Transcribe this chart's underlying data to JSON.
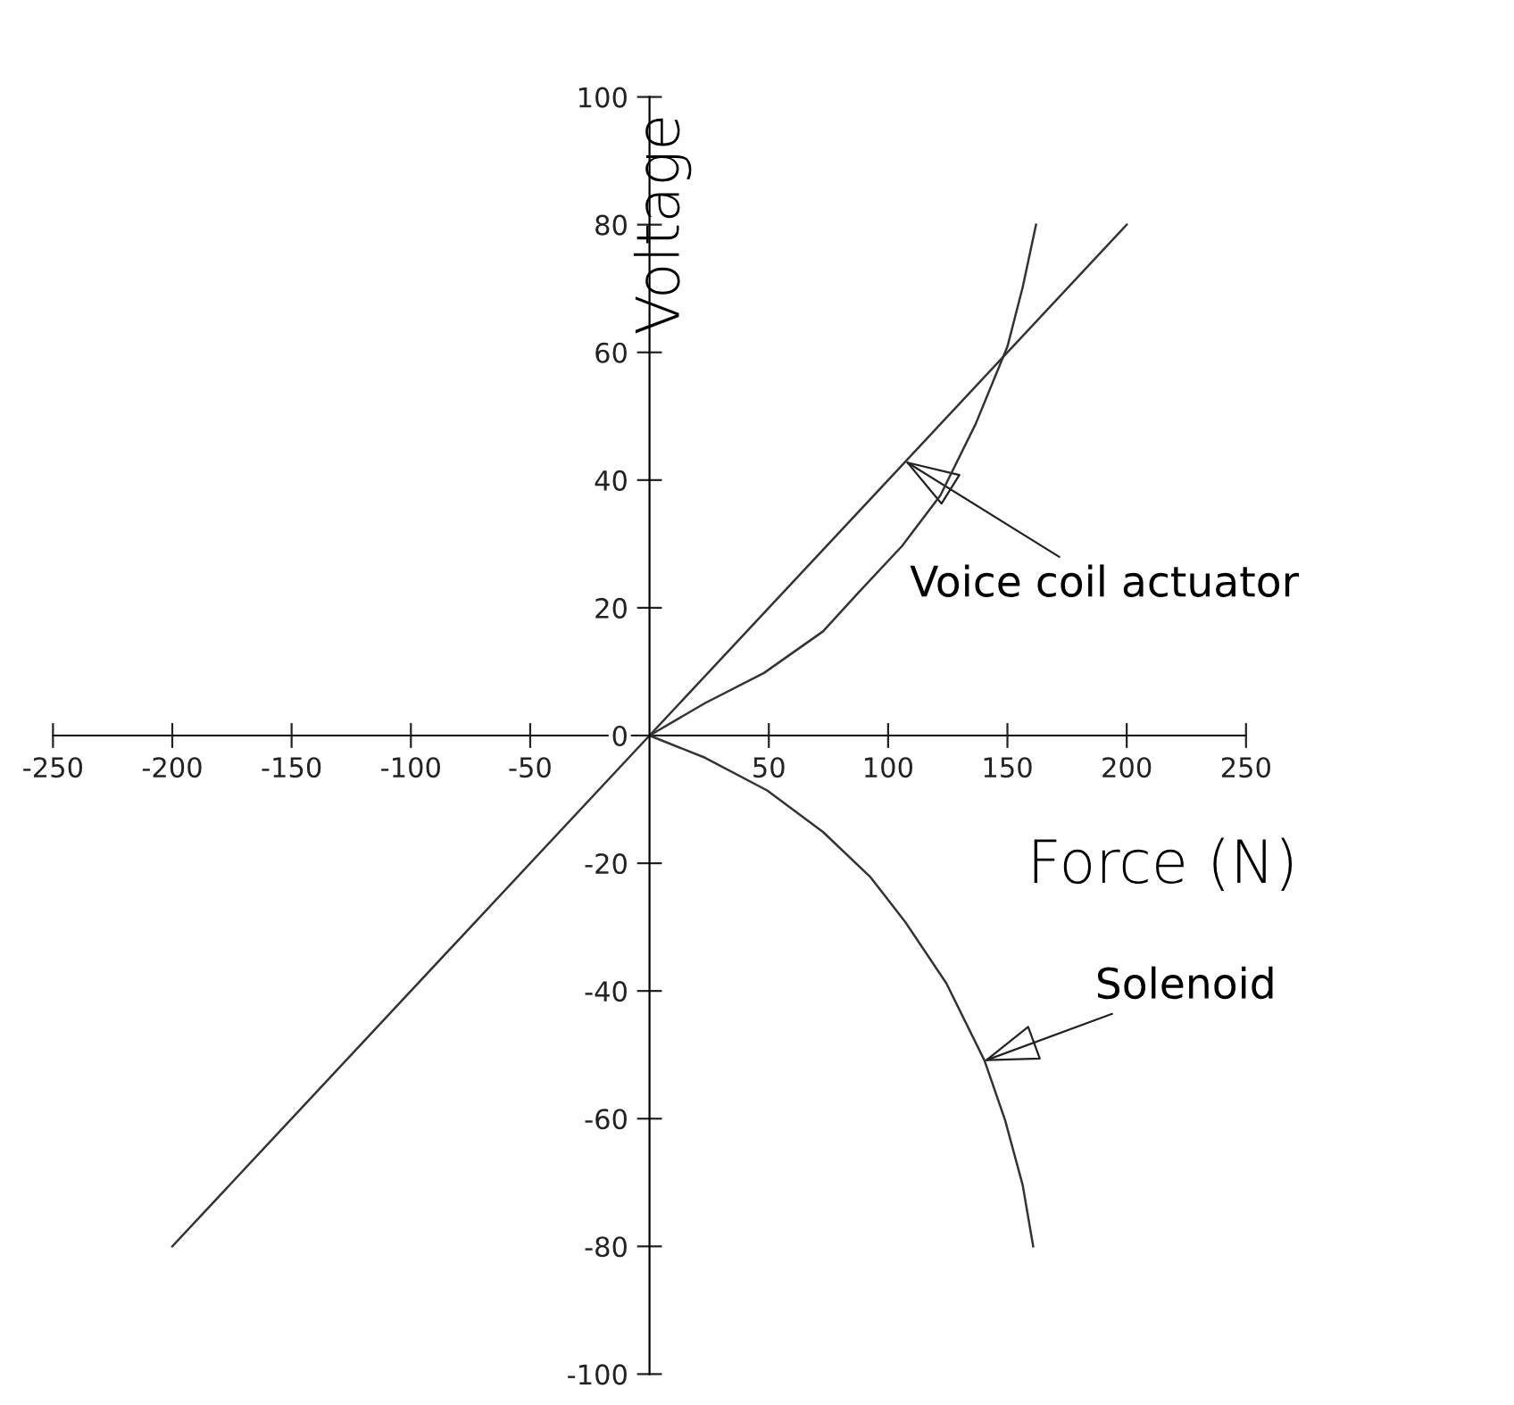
{
  "chart_data": {
    "type": "line",
    "xlabel": "Force (N)",
    "ylabel": "Voltage",
    "xlim": [
      -250,
      250
    ],
    "ylim": [
      -100,
      100
    ],
    "xticks": [
      -250,
      -200,
      -150,
      -100,
      -50,
      50,
      100,
      150,
      200,
      250
    ],
    "yticks": [
      -100,
      -80,
      -60,
      -40,
      -20,
      0,
      20,
      40,
      60,
      80,
      100
    ],
    "grid": false,
    "legend": false,
    "marker": "none",
    "line_style": "solid",
    "series": [
      {
        "color": "#333333",
        "x": [
          -200,
          200
        ],
        "values": [
          -80,
          80
        ]
      },
      {
        "color": "#333333",
        "x": [
          160.8,
          156.4,
          149,
          140.4,
          124.4,
          107,
          92.4,
          72.7,
          49.3,
          23.4,
          0,
          23.4,
          48,
          72.7,
          87.4,
          105.9,
          121.9,
          136.7,
          150,
          156.4,
          162
        ],
        "values": [
          -80,
          -70.4,
          -60.2,
          -50.9,
          -38.8,
          -29.1,
          -22.1,
          -15.1,
          -8.6,
          -3.5,
          0,
          5.1,
          9.8,
          16.3,
          22.3,
          29.7,
          37.6,
          48.8,
          60.9,
          70.2,
          80
        ]
      }
    ],
    "annotations": [
      {
        "text": "Voice coil actuator",
        "x": 107,
        "y": 43
      },
      {
        "text": "Solenoid",
        "x": 140,
        "y": -51
      }
    ]
  }
}
